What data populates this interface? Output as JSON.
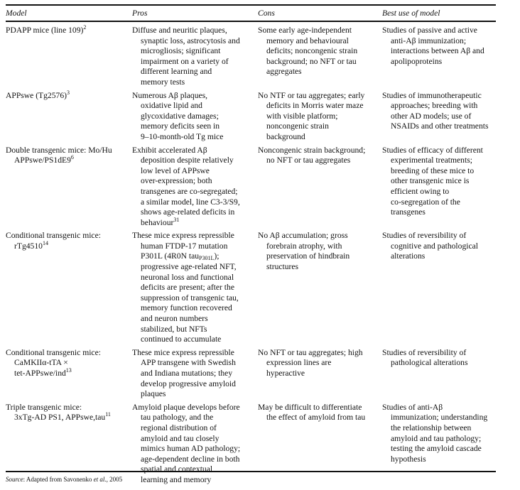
{
  "table": {
    "headers": [
      "Model",
      "Pros",
      "Cons",
      "Best use of model"
    ],
    "rows": [
      {
        "model": [
          {
            "t": "PDAPP mice (line 109)",
            "sup": "2"
          }
        ],
        "pros": [
          "Diffuse and neuritic plaques,",
          "synaptic loss, astrocytosis and",
          "microgliosis; significant",
          "impairment on a variety of",
          "different learning and",
          "memory tests"
        ],
        "cons": [
          "Some early age-independent",
          "memory and behavioural",
          "deficits; noncongenic strain",
          "background; no NFT or tau",
          "aggregates"
        ],
        "best": [
          "Studies of passive and active",
          "anti-Aβ immunization;",
          "interactions between Aβ and",
          "apolipoproteins"
        ]
      },
      {
        "model": [
          {
            "t": "APPswe (Tg2576)",
            "sup": "3"
          }
        ],
        "pros": [
          "Numerous Aβ plaques,",
          "oxidative lipid and",
          "glycoxidative damages;",
          "memory deficits seen in",
          "9–10-month-old Tg mice"
        ],
        "cons": [
          "No NTF or tau aggregates; early",
          "deficits in Morris water maze",
          "with visible platform;",
          "noncongenic strain",
          "background"
        ],
        "best": [
          "Studies of immunotherapeutic",
          "approaches; breeding with",
          "other AD models; use of",
          "NSAIDs and other treatments"
        ]
      },
      {
        "model": [
          "Double transgenic mice: Mo/Hu",
          {
            "t": "APPswe/PS1dE9",
            "sup": "6"
          }
        ],
        "pros": [
          "Exhibit accelerated Aβ",
          "deposition despite relatively",
          "low level of APPswe",
          "over-expression; both",
          "transgenes are co-segregated;",
          "a similar model, line C3-3/S9,",
          "shows age-related deficits in",
          {
            "t": "behaviour",
            "sup": "31"
          }
        ],
        "cons": [
          "Noncongenic strain background;",
          "no NFT or tau aggregates"
        ],
        "best": [
          "Studies of efficacy of different",
          "experimental treatments;",
          "breeding of these mice to",
          "other transgenic mice is",
          "efficient owing to",
          "co-segregation of the",
          "transgenes"
        ]
      },
      {
        "model": [
          "Conditional transgenic mice:",
          {
            "t": "rTg4510",
            "sup": "14"
          }
        ],
        "pros": [
          "These mice express repressible",
          "human FTDP-17 mutation",
          {
            "t": "P301L (4R0N tau",
            "sub": "P301L",
            "after": ");"
          },
          "progressive age-related NFT,",
          "neuronal loss and functional",
          "deficits are present; after the",
          "suppression of transgenic tau,",
          "memory function recovered",
          "and neuron numbers",
          "stabilized, but NFTs",
          "continued to accumulate"
        ],
        "cons": [
          "No Aβ accumulation; gross",
          "forebrain atrophy, with",
          "preservation of hindbrain",
          "structures"
        ],
        "best": [
          "Studies of reversibility of",
          "cognitive and pathological",
          "alterations"
        ]
      },
      {
        "model": [
          "Conditional transgenic mice:",
          "CaMKIIα-tTA ×",
          {
            "t": "tet-APPswe/ind",
            "sup": "13"
          }
        ],
        "pros": [
          "These mice express repressible",
          "APP transgene with Swedish",
          "and Indiana mutations; they",
          "develop progressive amyloid",
          "plaques"
        ],
        "cons": [
          "No NFT or tau aggregates; high",
          "expression lines are",
          "hyperactive"
        ],
        "best": [
          "Studies of reversibility of",
          "pathological alterations"
        ]
      },
      {
        "model": [
          "Triple transgenic mice:",
          {
            "t": "3xTg-AD PS1, APPswe,tau",
            "sup": "11"
          }
        ],
        "pros": [
          "Amyloid plaque develops before",
          "tau pathology, and the",
          "regional distribution of",
          "amyloid and tau closely",
          "mimics human AD pathology;",
          "age-dependent decline in both",
          "spatial and contextual",
          "learning and memory"
        ],
        "cons": [
          "May be difficult to differentiate",
          "the effect of amyloid from tau"
        ],
        "best": [
          "Studies of anti-Aβ",
          "immunization; understanding",
          "the relationship between",
          "amyloid and tau pathology;",
          "testing the amyloid cascade",
          "hypothesis"
        ]
      }
    ]
  },
  "source": {
    "label": "Source",
    "text": ": Adapted from Savonenko ",
    "etal": "et al.",
    "year": ", 2005"
  }
}
